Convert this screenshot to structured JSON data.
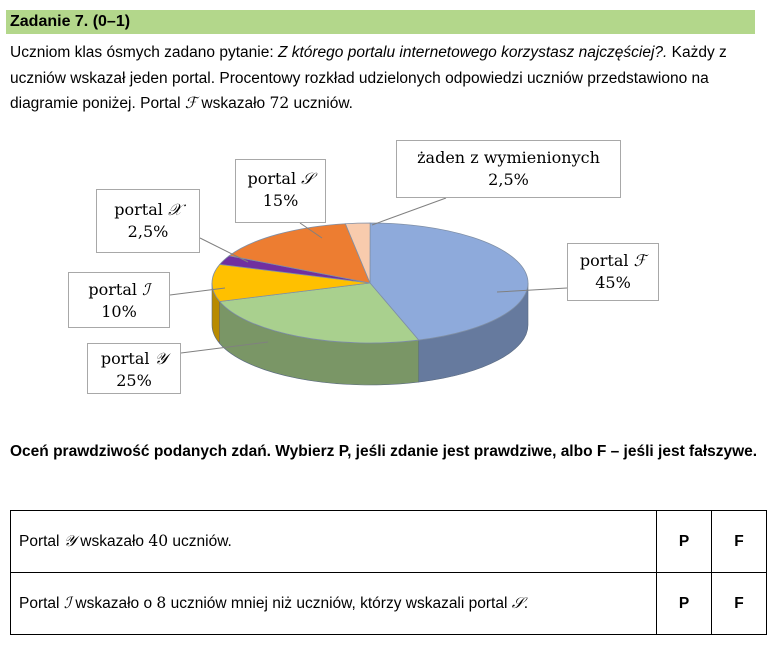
{
  "task": {
    "title": "Zadanie 7. (0–1)",
    "intro_part1": "Uczniom klas ósmych zadano pytanie: ",
    "intro_question": "Z którego portalu internetowego korzystasz najczęściej?.",
    "intro_part2": " Każdy z uczniów wskazał jeden portal. Procentowy rozkład udzielonych odpowiedzi uczniów przedstawiono na diagramie poniżej. Portal ",
    "intro_portal": "ℱ",
    "intro_part3": " wskazało ",
    "intro_number": "72",
    "intro_part4": " uczniów."
  },
  "chart_data": {
    "type": "pie",
    "slices": [
      {
        "name": "portal ℱ",
        "label_prefix": "portal ",
        "symbol": "ℱ",
        "value": 45,
        "value_label": "45%",
        "color": "#8eaadb"
      },
      {
        "name": "portal 𝒴",
        "label_prefix": "portal ",
        "symbol": "𝒴",
        "value": 25,
        "value_label": "25%",
        "color": "#a9d08e"
      },
      {
        "name": "portal ℐ",
        "label_prefix": "portal ",
        "symbol": "ℐ",
        "value": 10,
        "value_label": "10%",
        "color": "#ffc000"
      },
      {
        "name": "portal 𝒳",
        "label_prefix": "portal ",
        "symbol": "𝒳",
        "value": 2.5,
        "value_label": "2,5%",
        "color": "#7030a0"
      },
      {
        "name": "portal 𝒮",
        "label_prefix": "portal ",
        "symbol": "𝒮",
        "value": 15,
        "value_label": "15%",
        "color": "#ed7d31"
      },
      {
        "name": "żaden z wymienionych",
        "label_prefix": "żaden z wymienionych",
        "symbol": "",
        "value": 2.5,
        "value_label": "2,5%",
        "color": "#f8cbad"
      }
    ]
  },
  "instructions": "Oceń prawdziwość podanych zdań. Wybierz P, jeśli zdanie jest prawdziwe, albo F – jeśli jest fałszywe.",
  "statements": [
    {
      "p1": "Portal ",
      "s1": "𝒴",
      "p2": " wskazało ",
      "n1": "40",
      "p3": " uczniów.",
      "s2": "",
      "p4": "",
      "opt_true": "P",
      "opt_false": "F"
    },
    {
      "p1": "Portal ",
      "s1": "ℐ",
      "p2": " wskazało o ",
      "n1": "8",
      "p3": " uczniów mniej niż uczniów, którzy wskazali portal ",
      "s2": "𝒮",
      "p4": ".",
      "opt_true": "P",
      "opt_false": "F"
    }
  ]
}
